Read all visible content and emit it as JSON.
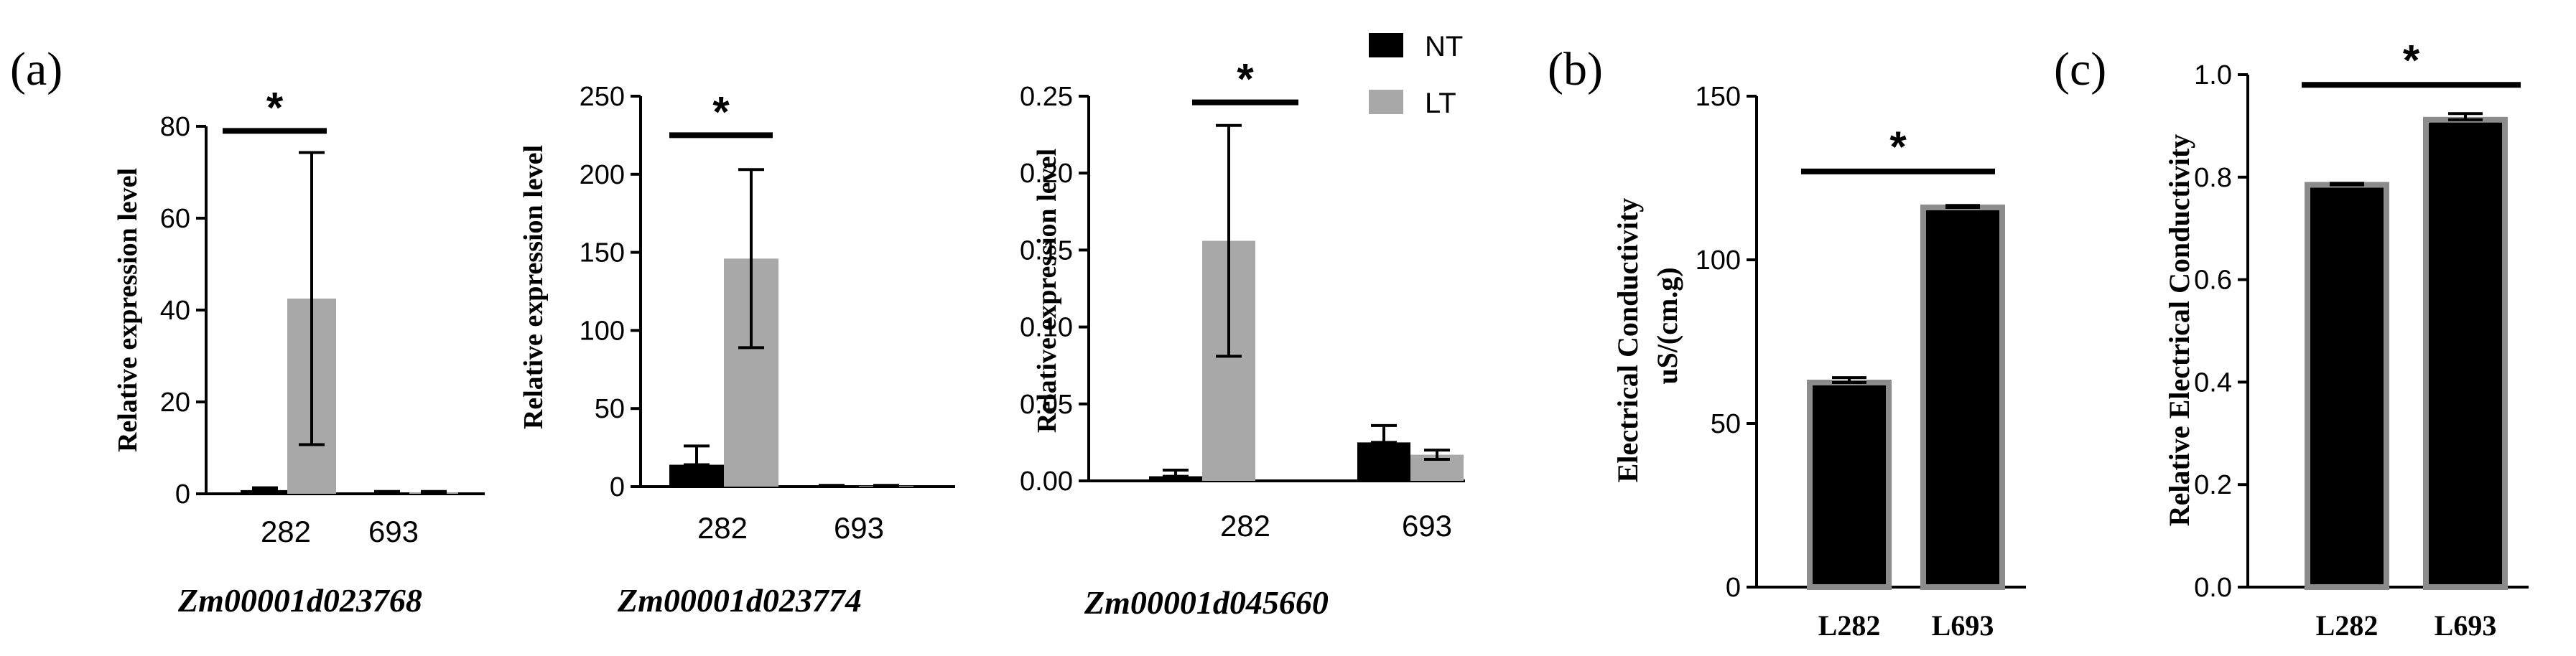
{
  "colors": {
    "nt": "#000000",
    "lt": "#a8a8a8",
    "axis": "#000000",
    "bar_edge": "#8c8c8c"
  },
  "legend": {
    "items": [
      {
        "label": "NT",
        "color": "#000000"
      },
      {
        "label": "LT",
        "color": "#a8a8a8"
      }
    ]
  },
  "panel_a": {
    "label": "(a)"
  },
  "panel_b": {
    "label": "(b)"
  },
  "panel_c": {
    "label": "(c)"
  },
  "chart_data": [
    {
      "type": "bar",
      "panel": "a1",
      "gene": "Zm00001d023768",
      "ylabel": "Relative expression level",
      "xlabel": "",
      "categories": [
        "282",
        "693"
      ],
      "ylim": [
        0,
        80
      ],
      "yticks": [
        0,
        20,
        40,
        60,
        80
      ],
      "ytick_labels": [
        "0",
        "20",
        "40",
        "60",
        "80"
      ],
      "series": [
        {
          "name": "NT",
          "values": [
            0.8,
            0.3
          ],
          "errors": [
            0.5,
            0.2
          ]
        },
        {
          "name": "LT",
          "values": [
            42.5,
            0.3
          ],
          "errors": [
            31.8,
            0.2
          ]
        }
      ],
      "significance": {
        "label": "*",
        "category": "282",
        "y": 79
      }
    },
    {
      "type": "bar",
      "panel": "a2",
      "gene": "Zm00001d023774",
      "ylabel": "Relative expression level",
      "xlabel": "",
      "categories": [
        "282",
        "693"
      ],
      "ylim": [
        0,
        250
      ],
      "yticks": [
        0,
        50,
        100,
        150,
        200,
        250
      ],
      "ytick_labels": [
        "0",
        "50",
        "100",
        "150",
        "200",
        "250"
      ],
      "series": [
        {
          "name": "NT",
          "values": [
            14,
            0.5
          ],
          "errors": [
            12,
            0.3
          ]
        },
        {
          "name": "LT",
          "values": [
            146,
            0.5
          ],
          "errors": [
            57,
            0.3
          ]
        }
      ],
      "significance": {
        "label": "*",
        "category": "282",
        "y": 225
      }
    },
    {
      "type": "bar",
      "panel": "a3",
      "gene": "Zm00001d045660",
      "ylabel": "Relative expression level",
      "xlabel": "",
      "categories": [
        "282",
        "693"
      ],
      "ylim": [
        0,
        0.25
      ],
      "yticks": [
        0,
        0.05,
        0.1,
        0.15,
        0.2,
        0.25
      ],
      "ytick_labels": [
        "0.00",
        "0.05",
        "0.10",
        "0.15",
        "0.20",
        "0.25"
      ],
      "series": [
        {
          "name": "NT",
          "values": [
            0.003,
            0.025
          ],
          "errors": [
            0.004,
            0.011
          ]
        },
        {
          "name": "LT",
          "values": [
            0.156,
            0.017
          ],
          "errors": [
            0.075,
            0.003
          ]
        }
      ],
      "significance": {
        "label": "*",
        "category": "282",
        "y": 0.246
      }
    },
    {
      "type": "bar",
      "panel": "b",
      "ylabel_lines": [
        "Electrical Conductivity",
        "uS/(cm.g)"
      ],
      "xlabel": "",
      "categories": [
        "L282",
        "L693"
      ],
      "ylim": [
        0,
        150
      ],
      "yticks": [
        0,
        50,
        100,
        150
      ],
      "ytick_labels": [
        "0",
        "50",
        "100",
        "150"
      ],
      "values": [
        62.5,
        116
      ],
      "errors": [
        1.5,
        0.6
      ],
      "significance": {
        "label": "*",
        "y": 127
      }
    },
    {
      "type": "bar",
      "panel": "c",
      "ylabel": "Relative Electrical Conductivity",
      "xlabel": "",
      "categories": [
        "L282",
        "L693"
      ],
      "ylim": [
        0,
        1.0
      ],
      "yticks": [
        0,
        0.2,
        0.4,
        0.6,
        0.8,
        1.0
      ],
      "ytick_labels": [
        "0.0",
        "0.2",
        "0.4",
        "0.6",
        "0.8",
        "1.0"
      ],
      "values": [
        0.785,
        0.912
      ],
      "errors": [
        0.003,
        0.012
      ],
      "significance": {
        "label": "*",
        "y": 0.98
      }
    }
  ]
}
